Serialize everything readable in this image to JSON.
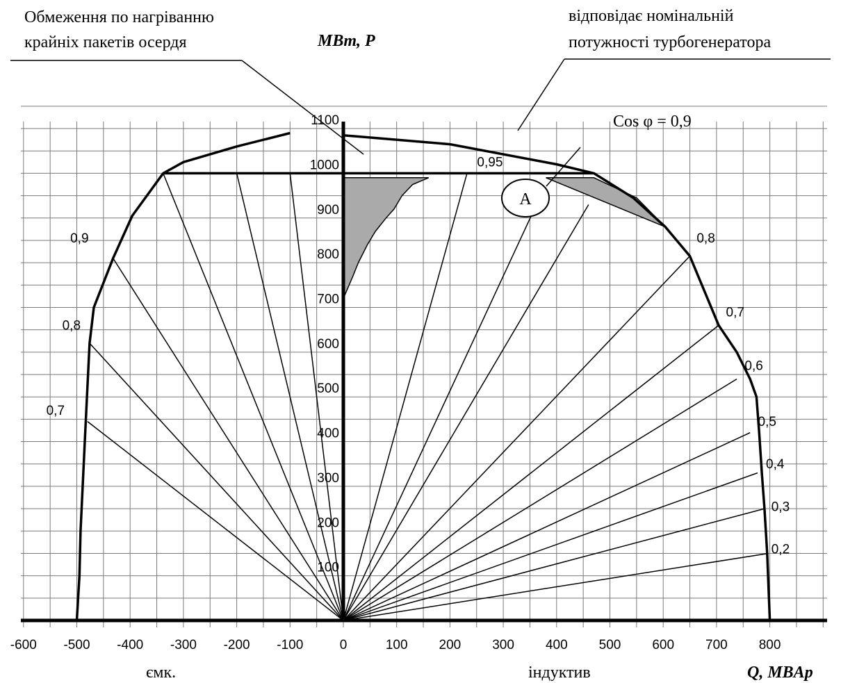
{
  "chart_data": {
    "type": "line",
    "ylabel": "MBm, P",
    "xlabel": "Q, MBAp",
    "xlim": [
      -600,
      800
    ],
    "ylim": [
      0,
      1100
    ],
    "x_ticks": [
      "-600",
      "-500",
      "-400",
      "-300",
      "-200",
      "-100",
      "0",
      "100",
      "200",
      "300",
      "400",
      "500",
      "600",
      "700",
      "800"
    ],
    "y_ticks": [
      "100",
      "200",
      "300",
      "400",
      "500",
      "600",
      "700",
      "800",
      "900",
      "1000",
      "1100"
    ],
    "x_region_labels": {
      "left": "ємк.",
      "right": "індуктив"
    },
    "grid": true,
    "capability_curve_right": [
      [
        800,
        0
      ],
      [
        795,
        150
      ],
      [
        790,
        250
      ],
      [
        785,
        330
      ],
      [
        780,
        420
      ],
      [
        775,
        500
      ],
      [
        763,
        540
      ],
      [
        738,
        600
      ],
      [
        704,
        660
      ],
      [
        650,
        815
      ],
      [
        604,
        880
      ],
      [
        544,
        945
      ],
      [
        470,
        1000
      ],
      [
        400,
        1020
      ],
      [
        200,
        1065
      ],
      [
        0,
        1085
      ]
    ],
    "capability_curve_left": [
      [
        -500,
        0
      ],
      [
        -495,
        100
      ],
      [
        -493,
        200
      ],
      [
        -485,
        400
      ],
      [
        -481,
        500
      ],
      [
        -476,
        620
      ],
      [
        -468,
        700
      ],
      [
        -432,
        810
      ],
      [
        -396,
        905
      ],
      [
        -338,
        1000
      ],
      [
        -300,
        1025
      ],
      [
        -200,
        1060
      ],
      [
        -100,
        1090
      ]
    ],
    "nominal_power_line": {
      "x": [
        -338,
        470
      ],
      "y": 1000
    },
    "power_factor_rays": [
      {
        "label": "0,95",
        "end": [
          232,
          1000
        ],
        "label_pos": [
          275,
          1015
        ]
      },
      {
        "label": "",
        "end": [
          370,
          950
        ]
      },
      {
        "label": "",
        "end": [
          460,
          930
        ]
      },
      {
        "label": "0,8",
        "end": [
          650,
          815
        ],
        "label_pos": [
          680,
          845
        ]
      },
      {
        "label": "0,7",
        "end": [
          704,
          660
        ],
        "label_pos": [
          735,
          680
        ]
      },
      {
        "label": "0,6",
        "end": [
          738,
          540
        ],
        "label_pos": [
          770,
          560
        ]
      },
      {
        "label": "0,5",
        "end": [
          763,
          420
        ],
        "label_pos": [
          795,
          435
        ]
      },
      {
        "label": "0,4",
        "end": [
          777,
          330
        ],
        "label_pos": [
          810,
          340
        ]
      },
      {
        "label": "0,3",
        "end": [
          790,
          250
        ],
        "label_pos": [
          820,
          245
        ]
      },
      {
        "label": "0,2",
        "end": [
          797,
          150
        ],
        "label_pos": [
          820,
          150
        ]
      },
      {
        "label": "0,9",
        "end": [
          -432,
          810
        ],
        "label_pos": [
          -495,
          845
        ]
      },
      {
        "label": "0,8",
        "end": [
          -476,
          620
        ],
        "label_pos": [
          -510,
          650
        ]
      },
      {
        "label": "0,7",
        "end": [
          -480,
          445
        ],
        "label_pos": [
          -540,
          460
        ]
      },
      {
        "label": "",
        "end": [
          -338,
          1000
        ]
      },
      {
        "label": "",
        "end": [
          -200,
          1000
        ]
      },
      {
        "label": "",
        "end": [
          -100,
          1000
        ]
      }
    ],
    "shaded_regions": [
      [
        [
          0,
          990
        ],
        [
          160,
          990
        ],
        [
          130,
          975
        ],
        [
          110,
          950
        ],
        [
          95,
          920
        ],
        [
          80,
          900
        ],
        [
          60,
          870
        ],
        [
          45,
          840
        ],
        [
          28,
          800
        ],
        [
          18,
          770
        ],
        [
          0,
          720
        ]
      ],
      [
        [
          380,
          990
        ],
        [
          470,
          990
        ],
        [
          550,
          945
        ],
        [
          604,
          880
        ]
      ]
    ],
    "annotations": {
      "cos": "Cos φ = 0,9",
      "nominal": [
        "відповідає номінальній",
        "потужності турбогенератора"
      ],
      "heating": [
        "Обмеження по нагріванню",
        "крайніх пакетів осердя"
      ],
      "point_a": "A"
    },
    "colors": {
      "line": "#000000",
      "grid": "#7a7a7a",
      "shade": "#aaaaaa"
    }
  }
}
